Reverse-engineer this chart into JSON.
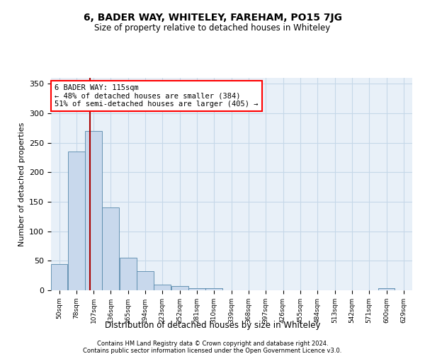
{
  "title": "6, BADER WAY, WHITELEY, FAREHAM, PO15 7JG",
  "subtitle": "Size of property relative to detached houses in Whiteley",
  "xlabel": "Distribution of detached houses by size in Whiteley",
  "ylabel": "Number of detached properties",
  "bar_color": "#c8d8ec",
  "bar_edge_color": "#5588aa",
  "grid_color": "#c5d8e8",
  "background_color": "#e8f0f8",
  "annotation_text": "6 BADER WAY: 115sqm\n← 48% of detached houses are smaller (384)\n51% of semi-detached houses are larger (405) →",
  "annotation_box_color": "white",
  "annotation_box_edge": "red",
  "vline_color": "#aa0000",
  "property_size": 115,
  "categories": [
    "50sqm",
    "78sqm",
    "107sqm",
    "136sqm",
    "165sqm",
    "194sqm",
    "223sqm",
    "252sqm",
    "281sqm",
    "310sqm",
    "339sqm",
    "368sqm",
    "397sqm",
    "426sqm",
    "455sqm",
    "484sqm",
    "513sqm",
    "542sqm",
    "571sqm",
    "600sqm",
    "629sqm"
  ],
  "bar_lefts": [
    50,
    78,
    107,
    136,
    165,
    194,
    223,
    252,
    281,
    310,
    339,
    368,
    397,
    426,
    455,
    484,
    513,
    542,
    571,
    600,
    629
  ],
  "bar_widths": [
    28,
    29,
    29,
    29,
    29,
    29,
    29,
    29,
    29,
    29,
    29,
    29,
    29,
    29,
    29,
    29,
    29,
    29,
    29,
    29,
    29
  ],
  "bar_heights": [
    44,
    235,
    270,
    141,
    55,
    33,
    10,
    7,
    4,
    4,
    0,
    0,
    0,
    0,
    0,
    0,
    0,
    0,
    0,
    4,
    0
  ],
  "ylim": [
    0,
    360
  ],
  "xlim": [
    50,
    658
  ],
  "yticks": [
    0,
    50,
    100,
    150,
    200,
    250,
    300,
    350
  ],
  "footnote1": "Contains HM Land Registry data © Crown copyright and database right 2024.",
  "footnote2": "Contains public sector information licensed under the Open Government Licence v3.0."
}
